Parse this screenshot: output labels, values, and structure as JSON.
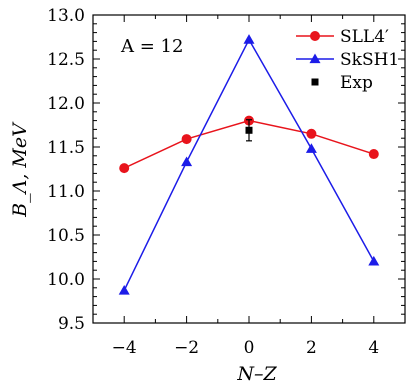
{
  "chart_data": {
    "type": "line",
    "annotation": "A = 12",
    "xlabel": "N–Z",
    "ylabel": "B_Λ, MeV",
    "xlim": [
      -5,
      5
    ],
    "ylim": [
      9.5,
      13.0
    ],
    "x_ticks": [
      -4,
      -2,
      0,
      2,
      4
    ],
    "x_tick_labels": [
      "−4",
      "−2",
      "0",
      "2",
      "4"
    ],
    "y_ticks": [
      9.5,
      10.0,
      10.5,
      11.0,
      11.5,
      12.0,
      12.5,
      13.0
    ],
    "y_tick_labels": [
      "9.5",
      "10.0",
      "10.5",
      "11.0",
      "11.5",
      "12.0",
      "12.5",
      "13.0"
    ],
    "legend_position": "top-right",
    "grid": false,
    "series": [
      {
        "name": "SLL4′",
        "color": "#e8141c",
        "marker": "circle",
        "x": [
          -4,
          -2,
          0,
          2,
          4
        ],
        "y": [
          11.26,
          11.59,
          11.8,
          11.65,
          11.42
        ]
      },
      {
        "name": "SkSH1",
        "color": "#1c1ce8",
        "marker": "triangle",
        "x": [
          -4,
          -2,
          0,
          2,
          4
        ],
        "y": [
          9.87,
          11.33,
          12.72,
          11.48,
          10.2
        ]
      },
      {
        "name": "Exp",
        "color": "#000000",
        "marker": "square",
        "x": [
          0
        ],
        "y": [
          11.69
        ],
        "yerr": [
          0.12
        ],
        "line": false
      }
    ]
  }
}
